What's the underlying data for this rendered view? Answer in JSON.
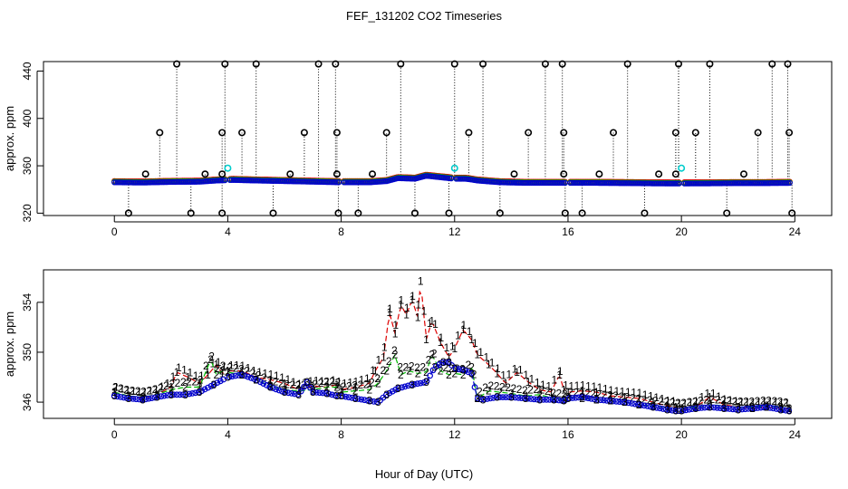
{
  "chart_data": [
    {
      "type": "scatter",
      "title": "FEF_131202  CO2 Timeseries",
      "xlabel": "",
      "ylabel": "approx. ppm",
      "xlim": [
        -2.5,
        25.3
      ],
      "ylim": [
        318,
        448
      ],
      "xticks": [
        0,
        4,
        8,
        12,
        16,
        20,
        24
      ],
      "xtick_labels": [
        "0",
        "4",
        "8",
        "12",
        "16",
        "20",
        "24"
      ],
      "yticks": [
        320,
        360,
        400,
        440
      ],
      "ytick_labels": [
        "320",
        "360",
        "400",
        "440"
      ],
      "grid": false,
      "legend": "none",
      "baseline": {
        "hours": [
          0,
          1,
          2,
          3,
          3.6,
          4.2,
          5,
          6,
          7,
          8,
          9,
          9.6,
          10,
          10.6,
          11,
          11.6,
          12,
          12.4,
          12.8,
          13.6,
          14.5,
          15.5,
          16,
          17,
          18,
          19,
          19.6,
          20,
          21,
          22,
          23,
          23.8
        ],
        "ppm": [
          346.5,
          346.3,
          346.8,
          347,
          348,
          348.5,
          348,
          347.5,
          347,
          346.5,
          346.5,
          347.5,
          350,
          349.5,
          352,
          350.5,
          349.5,
          349.5,
          348,
          346.5,
          346,
          346,
          346,
          346,
          345.8,
          345.6,
          345.5,
          345.5,
          345.6,
          345.8,
          345.8,
          346
        ]
      },
      "outliers_high": [
        {
          "hour": 1.6,
          "ppm": 388
        },
        {
          "hour": 2.2,
          "ppm": 446
        },
        {
          "hour": 3.8,
          "ppm": 388
        },
        {
          "hour": 3.9,
          "ppm": 446
        },
        {
          "hour": 4.5,
          "ppm": 388
        },
        {
          "hour": 5.0,
          "ppm": 446
        },
        {
          "hour": 6.7,
          "ppm": 388
        },
        {
          "hour": 7.2,
          "ppm": 446
        },
        {
          "hour": 7.8,
          "ppm": 446
        },
        {
          "hour": 7.85,
          "ppm": 388
        },
        {
          "hour": 9.6,
          "ppm": 388
        },
        {
          "hour": 10.1,
          "ppm": 446
        },
        {
          "hour": 12.0,
          "ppm": 446
        },
        {
          "hour": 12.5,
          "ppm": 388
        },
        {
          "hour": 13.0,
          "ppm": 446
        },
        {
          "hour": 14.6,
          "ppm": 388
        },
        {
          "hour": 15.2,
          "ppm": 446
        },
        {
          "hour": 15.8,
          "ppm": 446
        },
        {
          "hour": 15.85,
          "ppm": 388
        },
        {
          "hour": 17.6,
          "ppm": 388
        },
        {
          "hour": 18.1,
          "ppm": 446
        },
        {
          "hour": 19.8,
          "ppm": 388
        },
        {
          "hour": 19.9,
          "ppm": 446
        },
        {
          "hour": 20.5,
          "ppm": 388
        },
        {
          "hour": 21.0,
          "ppm": 446
        },
        {
          "hour": 22.7,
          "ppm": 388
        },
        {
          "hour": 23.2,
          "ppm": 446
        },
        {
          "hour": 23.75,
          "ppm": 446
        },
        {
          "hour": 23.8,
          "ppm": 388
        }
      ],
      "outliers_mid": [
        {
          "hour": 1.1,
          "ppm": 353
        },
        {
          "hour": 3.2,
          "ppm": 353
        },
        {
          "hour": 3.8,
          "ppm": 353
        },
        {
          "hour": 6.2,
          "ppm": 353
        },
        {
          "hour": 7.85,
          "ppm": 353
        },
        {
          "hour": 9.1,
          "ppm": 353
        },
        {
          "hour": 14.1,
          "ppm": 353
        },
        {
          "hour": 15.85,
          "ppm": 353
        },
        {
          "hour": 17.1,
          "ppm": 353
        },
        {
          "hour": 19.2,
          "ppm": 353
        },
        {
          "hour": 19.8,
          "ppm": 353
        },
        {
          "hour": 22.2,
          "ppm": 353
        }
      ],
      "outliers_low": [
        {
          "hour": 0.5,
          "ppm": 320
        },
        {
          "hour": 2.7,
          "ppm": 320
        },
        {
          "hour": 3.8,
          "ppm": 320
        },
        {
          "hour": 5.6,
          "ppm": 320
        },
        {
          "hour": 7.9,
          "ppm": 320
        },
        {
          "hour": 8.6,
          "ppm": 320
        },
        {
          "hour": 10.6,
          "ppm": 320
        },
        {
          "hour": 11.8,
          "ppm": 320
        },
        {
          "hour": 13.6,
          "ppm": 320
        },
        {
          "hour": 15.9,
          "ppm": 320
        },
        {
          "hour": 16.5,
          "ppm": 320
        },
        {
          "hour": 18.7,
          "ppm": 320
        },
        {
          "hour": 21.6,
          "ppm": 320
        },
        {
          "hour": 23.9,
          "ppm": 320
        }
      ],
      "outliers_cyan": [
        {
          "hour": 4.0,
          "ppm": 358
        },
        {
          "hour": 12.0,
          "ppm": 358
        },
        {
          "hour": 20.0,
          "ppm": 358
        }
      ],
      "colors": {
        "black": "#000000",
        "red": "#dd0000",
        "green": "#00bb00",
        "blue": "#0000cc",
        "cyan": "#00cccc"
      }
    },
    {
      "type": "line",
      "title": "",
      "xlabel": "Hour of Day (UTC)",
      "ylabel": "approx. ppm",
      "xlim": [
        -2.5,
        25.3
      ],
      "ylim": [
        344.7,
        356.6
      ],
      "xticks": [
        0,
        4,
        8,
        12,
        16,
        20,
        24
      ],
      "xtick_labels": [
        "0",
        "4",
        "8",
        "12",
        "16",
        "20",
        "24"
      ],
      "yticks": [
        346,
        350,
        354
      ],
      "ytick_labels": [
        "346",
        "350",
        "354"
      ],
      "grid": false,
      "legend": "none",
      "series": [
        {
          "name": "1",
          "color": "#dd0000",
          "hours": [
            0,
            0.5,
            1,
            1.5,
            2,
            2.2,
            2.6,
            3,
            3.3,
            3.6,
            3.8,
            4,
            4.5,
            5,
            5.5,
            6,
            6.5,
            7,
            7.5,
            7.85,
            8,
            8.5,
            9,
            9.2,
            9.5,
            9.7,
            9.9,
            10.1,
            10.3,
            10.5,
            10.7,
            10.8,
            11,
            11.2,
            11.5,
            11.8,
            12,
            12.3,
            12.6,
            12.8,
            13.2,
            13.5,
            13.8,
            14.2,
            14.6,
            15,
            15.4,
            15.7,
            15.85,
            16,
            16.5,
            17,
            17.5,
            18,
            18.5,
            19,
            19.5,
            19.8,
            20,
            20.5,
            21,
            21.5,
            22,
            22.5,
            23,
            23.5,
            23.8
          ],
          "ppm": [
            346.8,
            346.5,
            346.3,
            346.6,
            347.2,
            348.4,
            348,
            347.5,
            348.2,
            349,
            348.3,
            348.5,
            348.5,
            348,
            347.8,
            347.5,
            347,
            347.3,
            347.2,
            347.4,
            347,
            347.2,
            347.5,
            348.5,
            349.6,
            353.2,
            351.5,
            353.8,
            353,
            354.2,
            352.8,
            355.7,
            351,
            352.5,
            350.8,
            349.6,
            350.3,
            351.8,
            351,
            349.8,
            349,
            348.3,
            347.5,
            348.4,
            347.6,
            347,
            346.8,
            348.2,
            347,
            346.8,
            346.9,
            346.8,
            346.5,
            346.4,
            346.3,
            346.0,
            345.7,
            345.6,
            345.4,
            345.6,
            346.4,
            345.8,
            345.6,
            345.5,
            345.6,
            345.5,
            345.5
          ]
        },
        {
          "name": "2",
          "color": "#00bb00",
          "hours": [
            0,
            0.5,
            1,
            1.5,
            2,
            2.5,
            3,
            3.4,
            3.6,
            3.8,
            4,
            4.5,
            5,
            5.5,
            6,
            6.5,
            7,
            7.5,
            7.85,
            8,
            8.5,
            9,
            9.3,
            9.6,
            9.9,
            10.1,
            10.4,
            10.7,
            11,
            11.2,
            11.5,
            11.8,
            12,
            12.3,
            12.6,
            12.8,
            13.2,
            13.6,
            14,
            14.5,
            15,
            15.5,
            15.85,
            16,
            16.5,
            17,
            17.5,
            18,
            18.5,
            19,
            19.5,
            19.8,
            20,
            20.5,
            21,
            21.5,
            22,
            22.5,
            23,
            23.5,
            23.8
          ],
          "ppm": [
            346.8,
            346.5,
            346.4,
            346.6,
            347,
            347.2,
            347.2,
            349.4,
            348.2,
            348.5,
            348.4,
            348.2,
            347.8,
            347.3,
            347,
            346.9,
            347,
            347.2,
            347.2,
            346.8,
            346.9,
            347,
            347.5,
            348.5,
            349.8,
            348.2,
            348.5,
            348.3,
            348.4,
            349.8,
            348.5,
            348.2,
            348.3,
            348.2,
            348.8,
            346.3,
            346.9,
            346.8,
            346.7,
            346.5,
            346.6,
            346.3,
            346.2,
            346.4,
            346.3,
            346.2,
            346.1,
            346.0,
            345.8,
            345.7,
            345.6,
            345.5,
            345.5,
            345.6,
            345.8,
            345.7,
            345.6,
            345.6,
            345.7,
            345.6,
            345.5
          ]
        },
        {
          "name": "3",
          "color": "#0000cc",
          "hours": [
            0,
            0.5,
            1,
            1.5,
            2,
            2.5,
            3,
            3.5,
            4,
            4.5,
            5,
            5.5,
            6,
            6.5,
            6.8,
            7,
            7.5,
            7.85,
            8,
            8.5,
            9,
            9.3,
            9.6,
            10,
            10.5,
            11,
            11.3,
            11.6,
            11.8,
            12,
            12.3,
            12.6,
            12.8,
            13,
            13.5,
            14,
            14.5,
            15,
            15.5,
            15.85,
            16,
            16.5,
            17,
            17.5,
            18,
            18.5,
            19,
            19.5,
            19.8,
            20,
            20.5,
            21,
            21.5,
            22,
            22.5,
            23,
            23.5,
            23.8
          ],
          "ppm": [
            346.5,
            346.3,
            346.2,
            346.4,
            346.6,
            346.6,
            346.8,
            347.4,
            348,
            348.2,
            347.8,
            347.2,
            346.8,
            346.6,
            347.6,
            346.8,
            346.7,
            346.5,
            346.5,
            346.3,
            346.1,
            346.0,
            346.6,
            347.1,
            347.4,
            347.6,
            348.8,
            349.2,
            349.2,
            348.7,
            348.6,
            348.3,
            346.3,
            346.2,
            346.4,
            346.4,
            346.3,
            346.2,
            346.2,
            346.1,
            346.3,
            346.4,
            346.2,
            346.1,
            346.0,
            345.8,
            345.6,
            345.4,
            345.3,
            345.3,
            345.5,
            345.6,
            345.5,
            345.4,
            345.5,
            345.6,
            345.4,
            345.3
          ]
        }
      ]
    }
  ]
}
